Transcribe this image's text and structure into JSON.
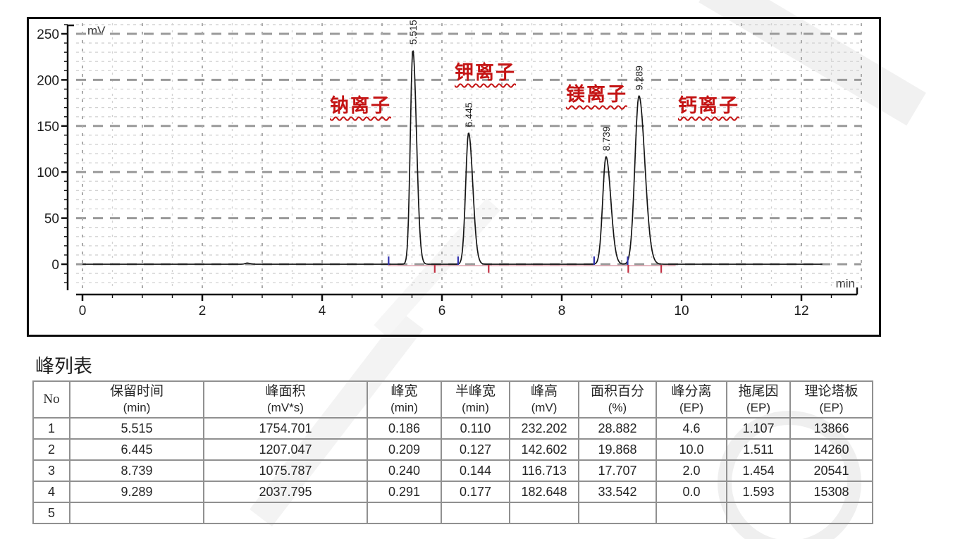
{
  "chart_data": {
    "type": "line",
    "title": "",
    "xlabel": "min",
    "ylabel": "mV",
    "xlim": [
      0,
      13
    ],
    "ylim": [
      -28,
      262
    ],
    "x_major_ticks": [
      0,
      2,
      4,
      6,
      8,
      10,
      12
    ],
    "x_minor_step": 0.5,
    "y_major_ticks": [
      0,
      50,
      100,
      150,
      200,
      250
    ],
    "y_minor_step": 10,
    "grid": "dashed major+minor",
    "trace_end_min": 12.35,
    "baseline_mv": 0,
    "peaks": [
      {
        "rt": 5.515,
        "height": 232.202,
        "fwhm": 0.11,
        "label": "5.515",
        "annotation": "钠离子"
      },
      {
        "rt": 6.445,
        "height": 142.602,
        "fwhm": 0.127,
        "label": "6.445",
        "annotation": "钾离子"
      },
      {
        "rt": 8.739,
        "height": 116.713,
        "fwhm": 0.144,
        "label": "8.739",
        "annotation": "镁离子"
      },
      {
        "rt": 9.289,
        "height": 182.648,
        "fwhm": 0.177,
        "label": "9.289",
        "annotation": "钙离子"
      }
    ],
    "baseline_blips": [
      {
        "rt": 2.75,
        "height": 1.2,
        "fwhm": 0.09
      }
    ],
    "integration": {
      "start_marks_min": [
        5.11,
        6.27,
        8.54,
        9.1
      ],
      "end_marks_min": [
        5.88,
        6.78,
        9.11,
        9.66
      ],
      "baseline_span_min": [
        5.1,
        9.9
      ]
    },
    "colors": {
      "trace": "#161616",
      "start_mark": "#3333b0",
      "end_mark": "#c23043",
      "integration_baseline": "#dda2ae",
      "annotation": "#c41414",
      "grid_major": "#9a9a9a",
      "grid_minor": "#d2d2d2",
      "axis": "#111111"
    }
  },
  "peak_table": {
    "title": "峰列表",
    "columns": [
      {
        "l1": "No",
        "l2": ""
      },
      {
        "l1": "保留时间",
        "l2": "(min)"
      },
      {
        "l1": "峰面积",
        "l2": "(mV*s)"
      },
      {
        "l1": "峰宽",
        "l2": "(min)"
      },
      {
        "l1": "半峰宽",
        "l2": "(min)"
      },
      {
        "l1": "峰高",
        "l2": "(mV)"
      },
      {
        "l1": "面积百分",
        "l2": "(%)"
      },
      {
        "l1": "峰分离",
        "l2": "(EP)"
      },
      {
        "l1": "拖尾因",
        "l2": "(EP)"
      },
      {
        "l1": "理论塔板",
        "l2": "(EP)"
      }
    ],
    "rows": [
      [
        "1",
        "5.515",
        "1754.701",
        "0.186",
        "0.110",
        "232.202",
        "28.882",
        "4.6",
        "1.107",
        "13866"
      ],
      [
        "2",
        "6.445",
        "1207.047",
        "0.209",
        "0.127",
        "142.602",
        "19.868",
        "10.0",
        "1.511",
        "14260"
      ],
      [
        "3",
        "8.739",
        "1075.787",
        "0.240",
        "0.144",
        "116.713",
        "17.707",
        "2.0",
        "1.454",
        "20541"
      ],
      [
        "4",
        "9.289",
        "2037.795",
        "0.291",
        "0.177",
        "182.648",
        "33.542",
        "0.0",
        "1.593",
        "15308"
      ],
      [
        "5",
        "",
        "",
        "",
        "",
        "",
        "",
        "",
        "",
        ""
      ]
    ]
  }
}
